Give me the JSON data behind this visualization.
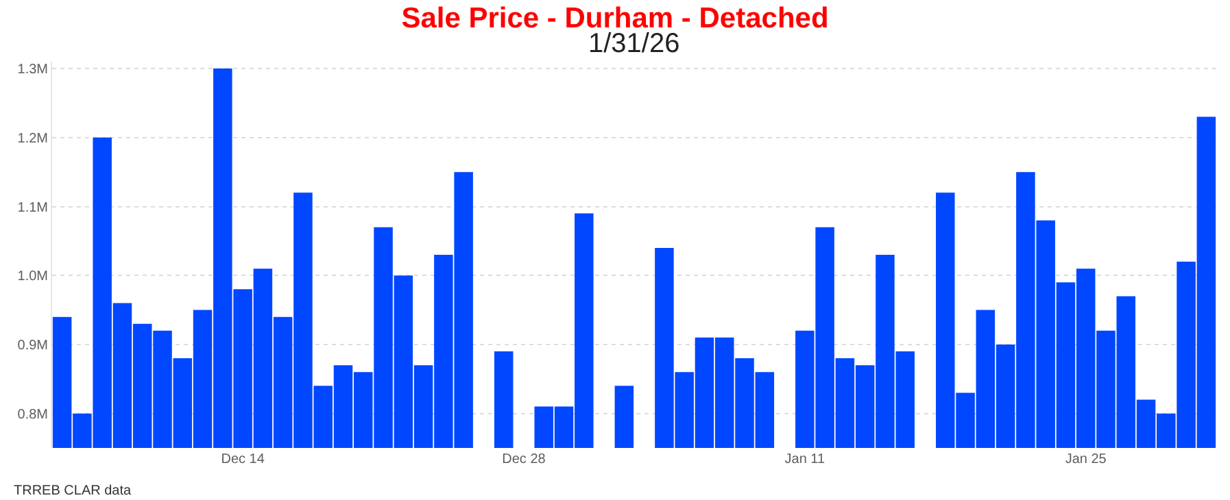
{
  "chart_data": {
    "type": "bar",
    "title": "Sale Price - Durham - Detached",
    "subtitle": "1/31/26",
    "categories": [
      null,
      null,
      null,
      null,
      null,
      null,
      null,
      null,
      null,
      "Dec 14",
      null,
      null,
      null,
      null,
      null,
      null,
      null,
      null,
      null,
      null,
      null,
      null,
      null,
      "Dec 28",
      null,
      null,
      null,
      null,
      null,
      null,
      null,
      null,
      null,
      null,
      null,
      null,
      null,
      "Jan 11",
      null,
      null,
      null,
      null,
      null,
      null,
      null,
      null,
      null,
      null,
      null,
      null,
      null,
      "Jan 25",
      null,
      null,
      null,
      null,
      null,
      null
    ],
    "series": [
      {
        "color": "#0047ff",
        "values": [
          0.94,
          0.8,
          1.2,
          0.96,
          0.93,
          0.92,
          0.88,
          0.95,
          1.3,
          0.98,
          1.01,
          0.94,
          1.12,
          0.84,
          0.87,
          0.86,
          1.07,
          1.0,
          0.87,
          1.03,
          1.15,
          null,
          0.89,
          null,
          0.81,
          0.81,
          1.09,
          null,
          0.84,
          null,
          1.04,
          0.86,
          0.91,
          0.91,
          0.88,
          0.86,
          null,
          0.92,
          1.07,
          0.88,
          0.87,
          1.03,
          0.89,
          null,
          1.12,
          0.83,
          0.95,
          0.9,
          1.15,
          1.08,
          0.99,
          1.01,
          0.92,
          0.97,
          0.82,
          0.8,
          1.02,
          1.23
        ]
      }
    ],
    "ylim": [
      0.75,
      1.31
    ],
    "yticks": [
      {
        "value": 0.8,
        "label": "0.8M"
      },
      {
        "value": 0.9,
        "label": "0.9M"
      },
      {
        "value": 1.0,
        "label": "1.0M"
      },
      {
        "value": 1.1,
        "label": "1.1M"
      },
      {
        "value": 1.2,
        "label": "1.2M"
      },
      {
        "value": 1.3,
        "label": "1.3M"
      }
    ],
    "grid": "y",
    "annotations": [
      "TRREB CLAR data"
    ]
  }
}
